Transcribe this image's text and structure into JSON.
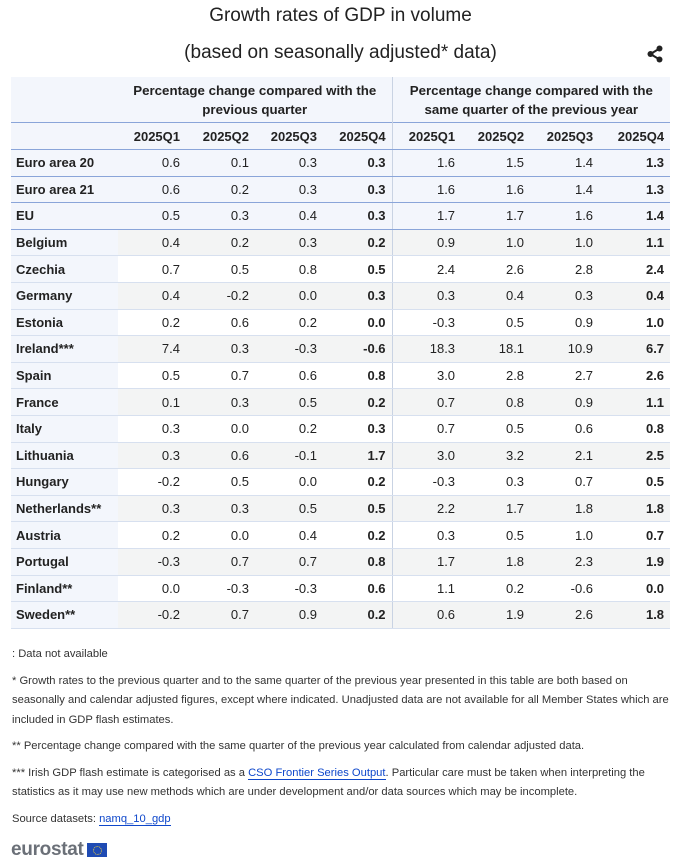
{
  "title": "Growth rates of GDP in volume",
  "subtitle": "(based on seasonally adjusted* data)",
  "share_icon": "share-icon",
  "table": {
    "group_headers": [
      "Percentage change compared with the previous quarter",
      "Percentage change compared with the same quarter of the previous year"
    ],
    "quarters": [
      "2025Q1",
      "2025Q2",
      "2025Q3",
      "2025Q4",
      "2025Q1",
      "2025Q2",
      "2025Q3",
      "2025Q4"
    ],
    "rows": [
      {
        "name": "Euro area 20",
        "qoq": [
          "0.6",
          "0.1",
          "0.3",
          "0.3"
        ],
        "yoy": [
          "1.6",
          "1.5",
          "1.4",
          "1.3"
        ]
      },
      {
        "name": "Euro area 21",
        "qoq": [
          "0.6",
          "0.2",
          "0.3",
          "0.3"
        ],
        "yoy": [
          "1.6",
          "1.6",
          "1.4",
          "1.3"
        ]
      },
      {
        "name": "EU",
        "qoq": [
          "0.5",
          "0.3",
          "0.4",
          "0.3"
        ],
        "yoy": [
          "1.7",
          "1.7",
          "1.6",
          "1.4"
        ]
      },
      {
        "name": "Belgium",
        "qoq": [
          "0.4",
          "0.2",
          "0.3",
          "0.2"
        ],
        "yoy": [
          "0.9",
          "1.0",
          "1.0",
          "1.1"
        ]
      },
      {
        "name": "Czechia",
        "qoq": [
          "0.7",
          "0.5",
          "0.8",
          "0.5"
        ],
        "yoy": [
          "2.4",
          "2.6",
          "2.8",
          "2.4"
        ]
      },
      {
        "name": "Germany",
        "qoq": [
          "0.4",
          "-0.2",
          "0.0",
          "0.3"
        ],
        "yoy": [
          "0.3",
          "0.4",
          "0.3",
          "0.4"
        ]
      },
      {
        "name": "Estonia",
        "qoq": [
          "0.2",
          "0.6",
          "0.2",
          "0.0"
        ],
        "yoy": [
          "-0.3",
          "0.5",
          "0.9",
          "1.0"
        ]
      },
      {
        "name": "Ireland***",
        "qoq": [
          "7.4",
          "0.3",
          "-0.3",
          "-0.6"
        ],
        "yoy": [
          "18.3",
          "18.1",
          "10.9",
          "6.7"
        ]
      },
      {
        "name": "Spain",
        "qoq": [
          "0.5",
          "0.7",
          "0.6",
          "0.8"
        ],
        "yoy": [
          "3.0",
          "2.8",
          "2.7",
          "2.6"
        ]
      },
      {
        "name": "France",
        "qoq": [
          "0.1",
          "0.3",
          "0.5",
          "0.2"
        ],
        "yoy": [
          "0.7",
          "0.8",
          "0.9",
          "1.1"
        ]
      },
      {
        "name": "Italy",
        "qoq": [
          "0.3",
          "0.0",
          "0.2",
          "0.3"
        ],
        "yoy": [
          "0.7",
          "0.5",
          "0.6",
          "0.8"
        ]
      },
      {
        "name": "Lithuania",
        "qoq": [
          "0.3",
          "0.6",
          "-0.1",
          "1.7"
        ],
        "yoy": [
          "3.0",
          "3.2",
          "2.1",
          "2.5"
        ]
      },
      {
        "name": "Hungary",
        "qoq": [
          "-0.2",
          "0.5",
          "0.0",
          "0.2"
        ],
        "yoy": [
          "-0.3",
          "0.3",
          "0.7",
          "0.5"
        ]
      },
      {
        "name": "Netherlands**",
        "qoq": [
          "0.3",
          "0.3",
          "0.5",
          "0.5"
        ],
        "yoy": [
          "2.2",
          "1.7",
          "1.8",
          "1.8"
        ]
      },
      {
        "name": "Austria",
        "qoq": [
          "0.2",
          "0.0",
          "0.4",
          "0.2"
        ],
        "yoy": [
          "0.3",
          "0.5",
          "1.0",
          "0.7"
        ]
      },
      {
        "name": "Portugal",
        "qoq": [
          "-0.3",
          "0.7",
          "0.7",
          "0.8"
        ],
        "yoy": [
          "1.7",
          "1.8",
          "2.3",
          "1.9"
        ]
      },
      {
        "name": "Finland**",
        "qoq": [
          "0.0",
          "-0.3",
          "-0.3",
          "0.6"
        ],
        "yoy": [
          "1.1",
          "0.2",
          "-0.6",
          "0.0"
        ]
      },
      {
        "name": "Sweden**",
        "qoq": [
          "-0.2",
          "0.7",
          "0.9",
          "0.2"
        ],
        "yoy": [
          "0.6",
          "1.9",
          "2.6",
          "1.8"
        ]
      }
    ]
  },
  "notes": {
    "not_available": ": Data not available",
    "star1": "* Growth rates to the previous quarter and to the same quarter of the previous year presented in this table are both based on seasonally and calendar adjusted figures, except where indicated. Unadjusted data are not available for all Member States which are included in GDP flash estimates.",
    "star2": "** Percentage change compared with the same quarter of the previous year calculated from calendar adjusted data.",
    "star3_pre": "*** Irish GDP flash estimate is categorised as a ",
    "star3_link": "CSO Frontier Series Output",
    "star3_post": ". Particular care must be taken when interpreting the statistics as it may use new methods which are under development and/or data sources which may be incomplete.",
    "source_label": "Source datasets: ",
    "source_link": "namq_10_gdp"
  },
  "logo": {
    "text": "eurostat",
    "flag_icon": "eu-flag-icon"
  },
  "colors": {
    "header_bg": "#f3f6fc",
    "stripe": "#f3f4f4",
    "border_accent": "#8aa5d9",
    "link": "#0e47cb"
  }
}
